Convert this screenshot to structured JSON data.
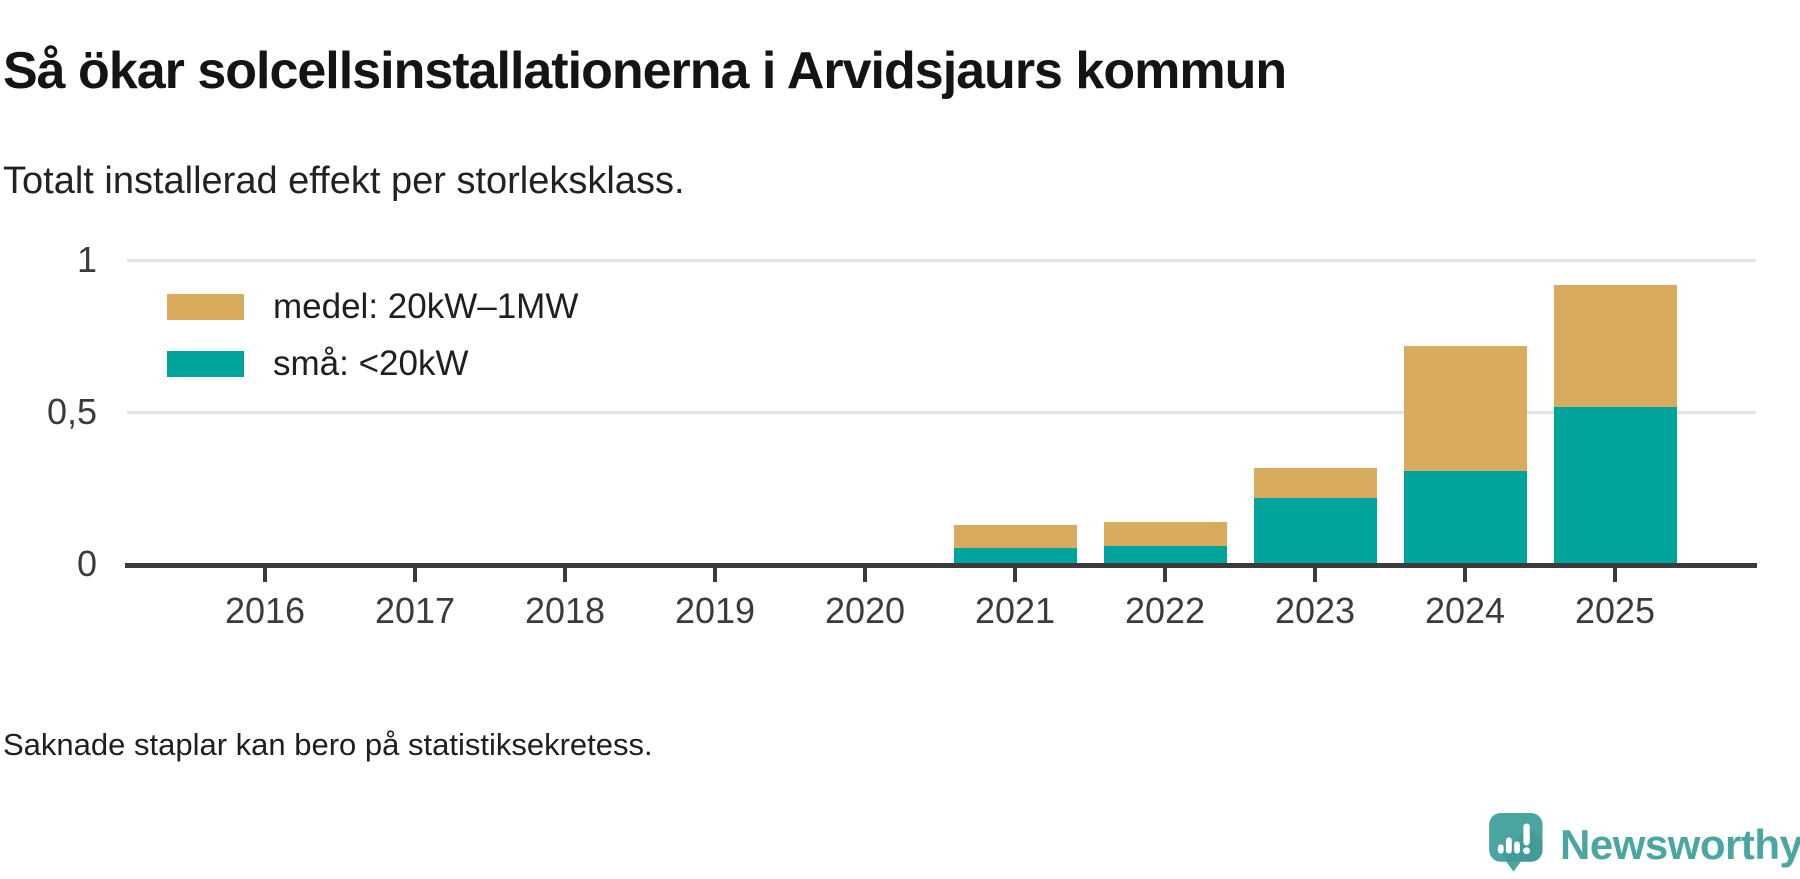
{
  "header": {
    "title": "Så ökar solcellsinstallationerna i Arvidsjaurs kommun",
    "subtitle": "Totalt installerad effekt per storleksklass."
  },
  "chart_data": {
    "type": "bar",
    "stacked": true,
    "categories": [
      "2016",
      "2017",
      "2018",
      "2019",
      "2020",
      "2021",
      "2022",
      "2023",
      "2024",
      "2025"
    ],
    "series": [
      {
        "name": "små: <20kW",
        "color": "#00a49b",
        "values": [
          0,
          0,
          0,
          0,
          0,
          0.055,
          0.063,
          0.22,
          0.31,
          0.52
        ]
      },
      {
        "name": "medel: 20kW–1MW",
        "color": "#d9ab5e",
        "values": [
          0,
          0,
          0,
          0,
          0,
          0.075,
          0.077,
          0.1,
          0.41,
          0.4
        ]
      }
    ],
    "legend": [
      {
        "label": "medel: 20kW–1MW",
        "color": "#d9ab5e"
      },
      {
        "label": "små: <20kW",
        "color": "#00a49b"
      }
    ],
    "legend_position": "top-left-inside",
    "y_axis": {
      "range": [
        0,
        1
      ],
      "ticks": [
        {
          "value": 0,
          "label": "0"
        },
        {
          "value": 0.5,
          "label": "0,5"
        },
        {
          "value": 1,
          "label": "1"
        }
      ],
      "gridline_values": [
        0.5,
        1
      ]
    },
    "grid": "horizontal",
    "notes": "Bars missing for 2016–2020"
  },
  "footnote": "Saknade staplar kan bero på statistiksekretess.",
  "branding": {
    "name": "Newsworthy",
    "icon": "newsworthy-chart-bubble-icon",
    "color": "#4ba6a1"
  }
}
